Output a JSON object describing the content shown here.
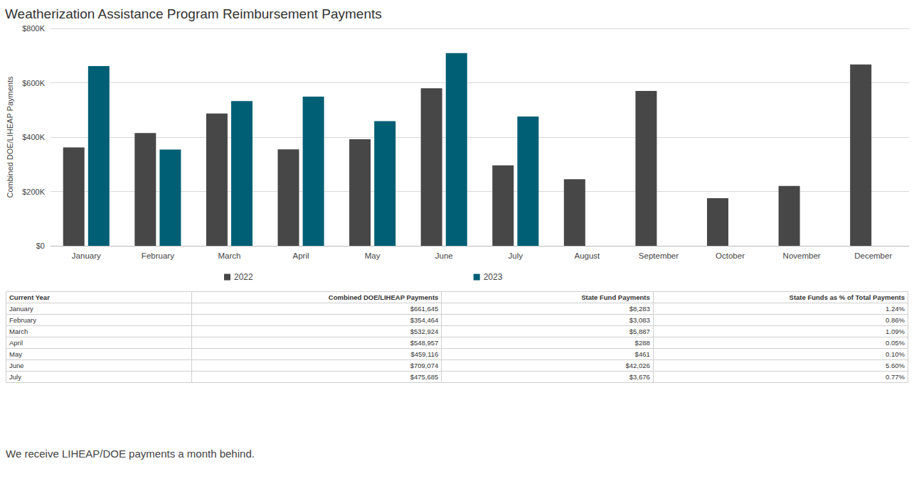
{
  "chart_data": {
    "type": "bar",
    "title": "Weatherization Assistance Program Reimbursement Payments",
    "y_label": "Combined DOE/LIHEAP Payments",
    "categories": [
      "January",
      "February",
      "March",
      "April",
      "May",
      "June",
      "July",
      "August",
      "September",
      "October",
      "November",
      "December"
    ],
    "series": [
      {
        "name": "2022",
        "color": "#474747",
        "values": [
          362000,
          415000,
          487000,
          355000,
          392000,
          580000,
          296000,
          245000,
          570000,
          175000,
          220000,
          667000
        ]
      },
      {
        "name": "2023",
        "color": "#005f75",
        "values": [
          661645,
          354464,
          532924,
          548957,
          459116,
          709074,
          475685,
          null,
          null,
          null,
          null,
          null
        ]
      }
    ],
    "ylim": [
      0,
      800000
    ],
    "yticks": [
      {
        "value": 0,
        "label": "$0"
      },
      {
        "value": 200000,
        "label": "$200K"
      },
      {
        "value": 400000,
        "label": "$400K"
      },
      {
        "value": 600000,
        "label": "$600K"
      },
      {
        "value": 800000,
        "label": "$800K"
      }
    ],
    "grid": true,
    "legend": "bottom"
  },
  "table": {
    "header": [
      "Current Year",
      "Combined DOE/LIHEAP Payments",
      "State Fund Payments",
      "State Funds as % of Total Payments"
    ],
    "rows": [
      [
        "January",
        "$661,645",
        "$8,283",
        "1.24%"
      ],
      [
        "February",
        "$354,464",
        "$3,083",
        "0.86%"
      ],
      [
        "March",
        "$532,924",
        "$5,887",
        "1.09%"
      ],
      [
        "April",
        "$548,957",
        "$288",
        "0.05%"
      ],
      [
        "May",
        "$459,116",
        "$461",
        "0.10%"
      ],
      [
        "June",
        "$709,074",
        "$42,026",
        "5.60%"
      ],
      [
        "July",
        "$475,685",
        "$3,676",
        "0.77%"
      ]
    ]
  },
  "note": "We receive LIHEAP/DOE payments a month behind."
}
